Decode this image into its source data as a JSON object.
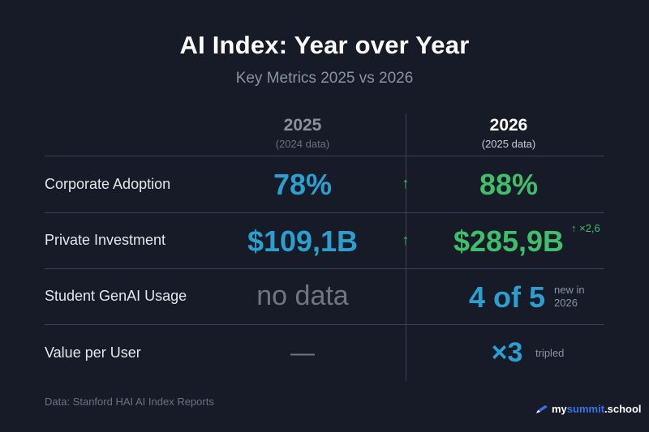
{
  "header": {
    "title": "AI Index: Year over Year",
    "subtitle": "Key Metrics 2025 vs 2026"
  },
  "columns": [
    {
      "year": "2025",
      "sub": "(2024 data)"
    },
    {
      "year": "2026",
      "sub": "(2025 data)"
    }
  ],
  "rows": [
    {
      "label": "Corporate Adoption",
      "v2025": "78%",
      "arrow": "↑",
      "v2026": "88%"
    },
    {
      "label": "Private Investment",
      "v2025": "$109,1B",
      "arrow": "↑",
      "v2026": "$285,9B",
      "note": "↑ ×2,6"
    },
    {
      "label": "Student GenAI Usage",
      "v2025": "no data",
      "v2026": "4 of 5",
      "note_line1": "new in",
      "note_line2": "2026"
    },
    {
      "label": "Value per User",
      "v2025": "—",
      "v2026": "×3",
      "note": "tripled"
    }
  ],
  "footer": {
    "source": "Data: Stanford HAI AI Index Reports",
    "brand_prefix": "my",
    "brand_accent": "summit",
    "brand_suffix": ".school"
  },
  "colors": {
    "background": "#161b27",
    "blue_value": "#2b9fcf",
    "green_value": "#3fbf6a",
    "brand_accent": "#3a72e8"
  }
}
